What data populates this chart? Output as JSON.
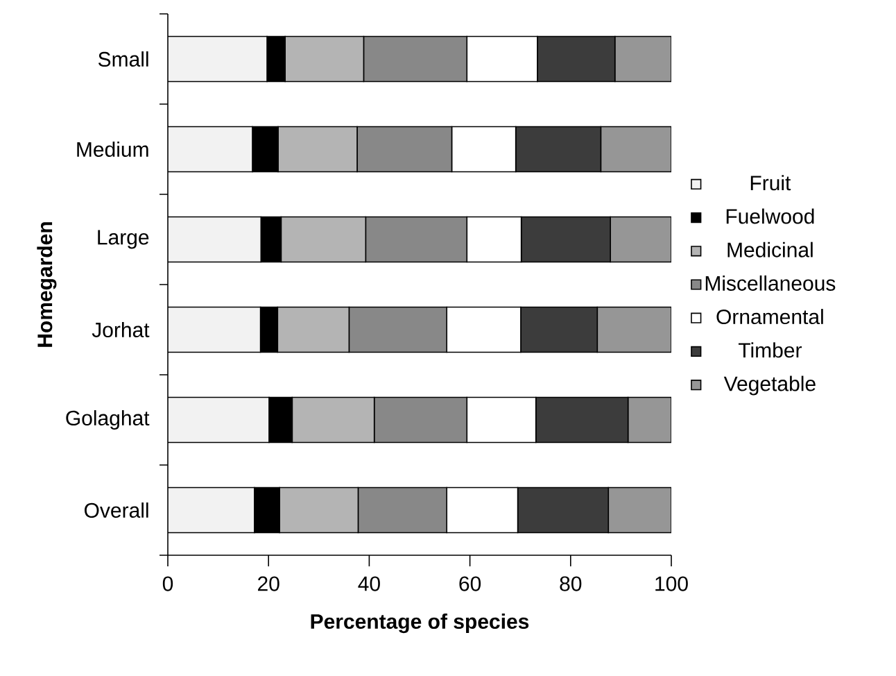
{
  "chart_data": {
    "type": "bar",
    "orientation": "horizontal",
    "stacked": true,
    "xlabel": "Percentage of species",
    "ylabel": "Homegarden",
    "categories": [
      "Small",
      "Medium",
      "Large",
      "Jorhat",
      "Golaghat",
      "Overall"
    ],
    "xlim": [
      0,
      100
    ],
    "xticks": [
      0,
      20,
      40,
      60,
      80,
      100
    ],
    "legend": "right",
    "grid": false,
    "series": [
      {
        "name": "Fruit",
        "color": "#f2f2f2",
        "values": [
          19.7,
          16.8,
          18.5,
          18.4,
          20.1,
          17.2
        ]
      },
      {
        "name": "Fuelwood",
        "color": "#000000",
        "values": [
          3.6,
          5.1,
          4.0,
          3.4,
          4.6,
          5.0
        ]
      },
      {
        "name": "Medicinal",
        "color": "#b4b4b4",
        "values": [
          15.6,
          15.7,
          16.8,
          14.2,
          16.3,
          15.6
        ]
      },
      {
        "name": "Miscellaneous",
        "color": "#888888",
        "values": [
          20.5,
          18.8,
          20.1,
          19.4,
          18.4,
          17.6
        ]
      },
      {
        "name": "Ornamental",
        "color": "#ffffff",
        "values": [
          14.0,
          12.7,
          10.8,
          14.7,
          13.7,
          14.1
        ]
      },
      {
        "name": "Timber",
        "color": "#3c3c3c",
        "values": [
          15.4,
          16.9,
          17.7,
          15.2,
          18.3,
          18.0
        ]
      },
      {
        "name": "Vegetable",
        "color": "#969696",
        "values": [
          11.2,
          14.0,
          12.1,
          14.7,
          8.6,
          12.5
        ]
      }
    ]
  }
}
